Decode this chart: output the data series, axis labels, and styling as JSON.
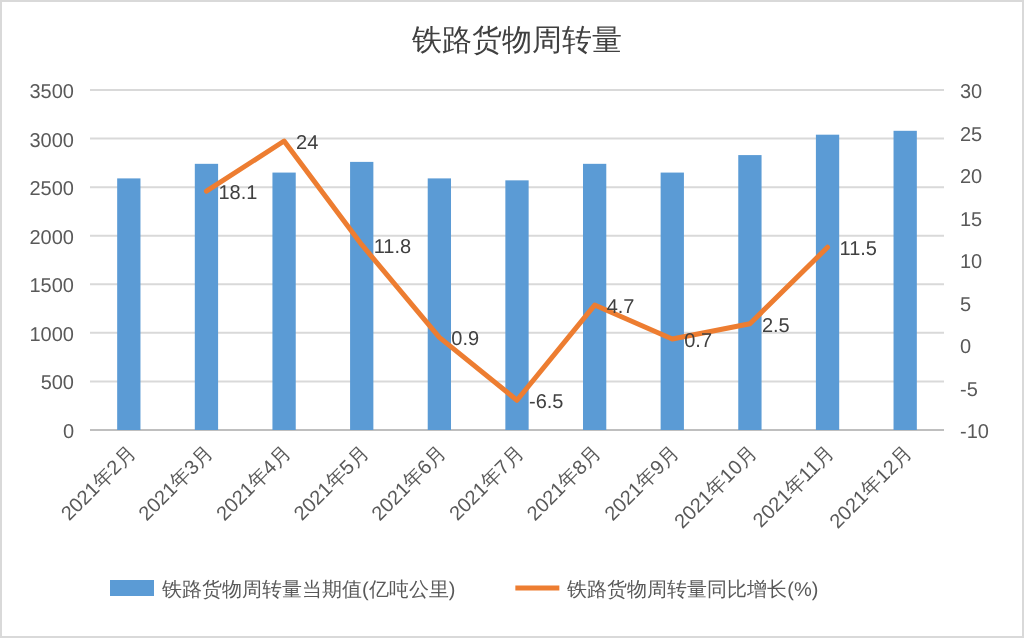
{
  "chart_data": {
    "type": "bar",
    "title": "铁路货物周转量",
    "categories": [
      "2021年2月",
      "2021年3月",
      "2021年4月",
      "2021年5月",
      "2021年6月",
      "2021年7月",
      "2021年8月",
      "2021年9月",
      "2021年10月",
      "2021年11月",
      "2021年12月"
    ],
    "series": [
      {
        "name": "铁路货物周转量当期值(亿吨公里)",
        "color": "#5b9bd5",
        "values": [
          2590,
          2740,
          2650,
          2760,
          2590,
          2570,
          2740,
          2650,
          2830,
          3040,
          3080
        ]
      },
      {
        "name": "铁路货物周转量同比增长(%)",
        "type": "line",
        "axis": "y2",
        "color": "#ed7d31",
        "values": [
          null,
          18.1,
          24,
          11.8,
          0.9,
          -6.5,
          4.7,
          0.7,
          2.5,
          11.5,
          null
        ],
        "value_labels": [
          null,
          "18.1",
          "24",
          "11.8",
          "0.9",
          "-6.5",
          "4.7",
          "0.7",
          "2.5",
          "11.5",
          null
        ]
      }
    ],
    "ylim": [
      0,
      3500
    ],
    "yticks": [
      0,
      500,
      1000,
      1500,
      2000,
      2500,
      3000,
      3500
    ],
    "y2lim": [
      -10,
      30
    ],
    "y2ticks": [
      -10,
      -5,
      0,
      5,
      10,
      15,
      20,
      25,
      30
    ],
    "grid": "y",
    "legend": "bottom"
  }
}
